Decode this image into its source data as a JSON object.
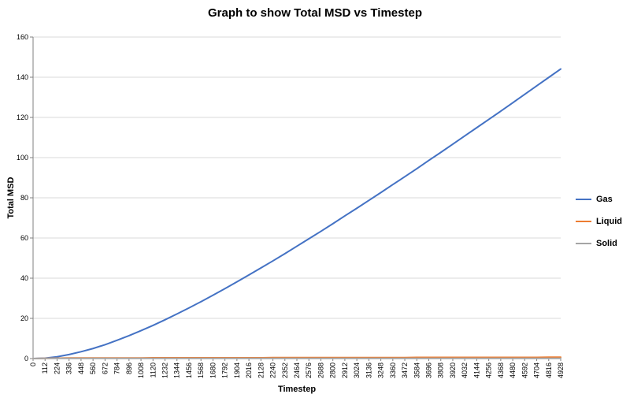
{
  "chart_data": {
    "type": "line",
    "title": "Graph to show Total MSD vs Timestep",
    "xlabel": "Timestep",
    "ylabel": "Total MSD",
    "xlim": [
      0,
      4928
    ],
    "ylim": [
      0,
      160
    ],
    "y_ticks": [
      0,
      20,
      40,
      60,
      80,
      100,
      120,
      140,
      160
    ],
    "grid": "horizontal",
    "grid_color": "#d9d9d9",
    "axis_color": "#808080",
    "legend_position": "right",
    "categories": [
      0,
      112,
      224,
      336,
      448,
      560,
      672,
      784,
      896,
      1008,
      1120,
      1232,
      1344,
      1456,
      1568,
      1680,
      1792,
      1904,
      2016,
      2128,
      2240,
      2352,
      2464,
      2576,
      2688,
      2800,
      2912,
      3024,
      3136,
      3248,
      3360,
      3472,
      3584,
      3696,
      3808,
      3920,
      4032,
      4144,
      4256,
      4368,
      4480,
      4592,
      4704,
      4816,
      4928
    ],
    "series": [
      {
        "name": "Gas",
        "color": "#4472c4",
        "values": [
          0,
          0.2,
          0.9,
          2.0,
          3.4,
          5.0,
          6.9,
          9.1,
          11.4,
          13.9,
          16.5,
          19.3,
          22.2,
          25.2,
          28.3,
          31.5,
          34.8,
          38.2,
          41.6,
          45.1,
          48.6,
          52.2,
          55.9,
          59.6,
          63.3,
          67.1,
          71.0,
          74.8,
          78.7,
          82.6,
          86.6,
          90.5,
          94.5,
          98.6,
          102.6,
          106.7,
          110.8,
          114.9,
          119.0,
          123.1,
          127.3,
          131.5,
          135.7,
          139.9,
          144.1
        ]
      },
      {
        "name": "Liquid",
        "color": "#ed7d31",
        "values": [
          0,
          0.1,
          0.2,
          0.3,
          0.3,
          0.3,
          0.3,
          0.3,
          0.3,
          0.3,
          0.4,
          0.4,
          0.4,
          0.4,
          0.4,
          0.4,
          0.4,
          0.4,
          0.4,
          0.4,
          0.5,
          0.5,
          0.5,
          0.5,
          0.5,
          0.5,
          0.5,
          0.5,
          0.5,
          0.5,
          0.5,
          0.5,
          0.6,
          0.6,
          0.6,
          0.6,
          0.6,
          0.6,
          0.6,
          0.6,
          0.6,
          0.6,
          0.6,
          0.7,
          0.7
        ]
      },
      {
        "name": "Solid",
        "color": "#a5a5a5",
        "values": [
          0,
          0.1,
          0.1,
          0.1,
          0.1,
          0.1,
          0.1,
          0.1,
          0.1,
          0.1,
          0.1,
          0.1,
          0.1,
          0.1,
          0.1,
          0.1,
          0.1,
          0.1,
          0.1,
          0.1,
          0.1,
          0.1,
          0.1,
          0.1,
          0.1,
          0.1,
          0.1,
          0.1,
          0.1,
          0.1,
          0.1,
          0.1,
          0.1,
          0.1,
          0.1,
          0.1,
          0.1,
          0.1,
          0.1,
          0.1,
          0.1,
          0.1,
          0.1,
          0.1,
          0.1
        ]
      }
    ]
  }
}
